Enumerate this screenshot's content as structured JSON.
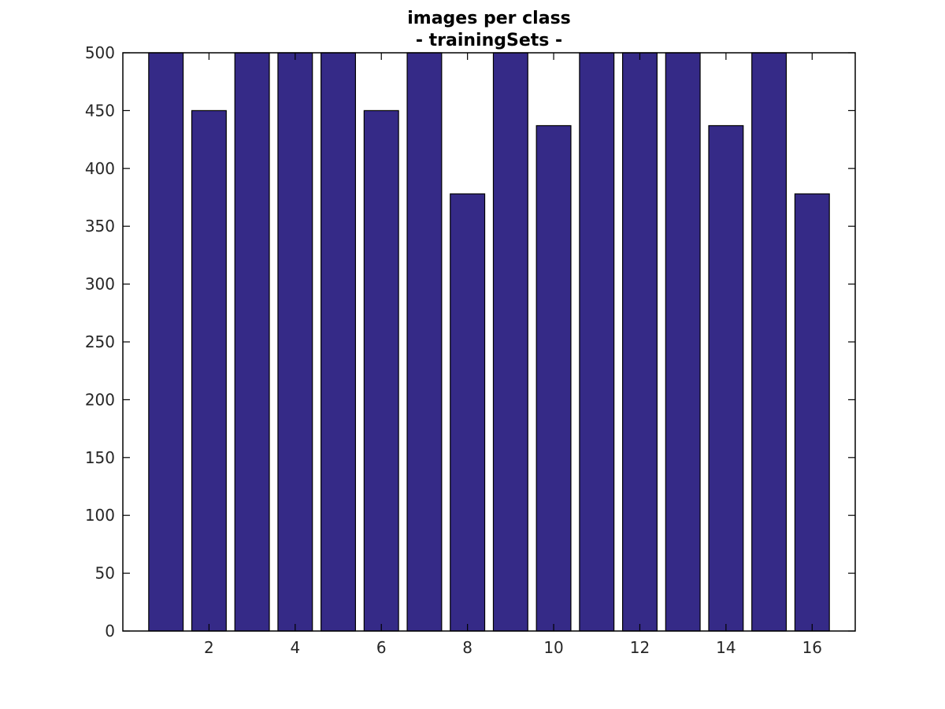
{
  "chart_data": {
    "type": "bar",
    "title": "images per class",
    "subtitle": "- trainingSets -",
    "xlabel": "",
    "ylabel": "",
    "categories": [
      1,
      2,
      3,
      4,
      5,
      6,
      7,
      8,
      9,
      10,
      11,
      12,
      13,
      14,
      15,
      16
    ],
    "values": [
      500,
      450,
      500,
      500,
      500,
      450,
      500,
      378,
      500,
      437,
      500,
      500,
      500,
      437,
      500,
      378
    ],
    "xlim": [
      0,
      17
    ],
    "ylim": [
      0,
      500
    ],
    "xticks": [
      2,
      4,
      6,
      8,
      10,
      12,
      14,
      16
    ],
    "yticks": [
      0,
      50,
      100,
      150,
      200,
      250,
      300,
      350,
      400,
      450,
      500
    ],
    "grid": false,
    "legend": "none",
    "bar_color": "#352a87",
    "bar_edge_color": "#000000"
  }
}
